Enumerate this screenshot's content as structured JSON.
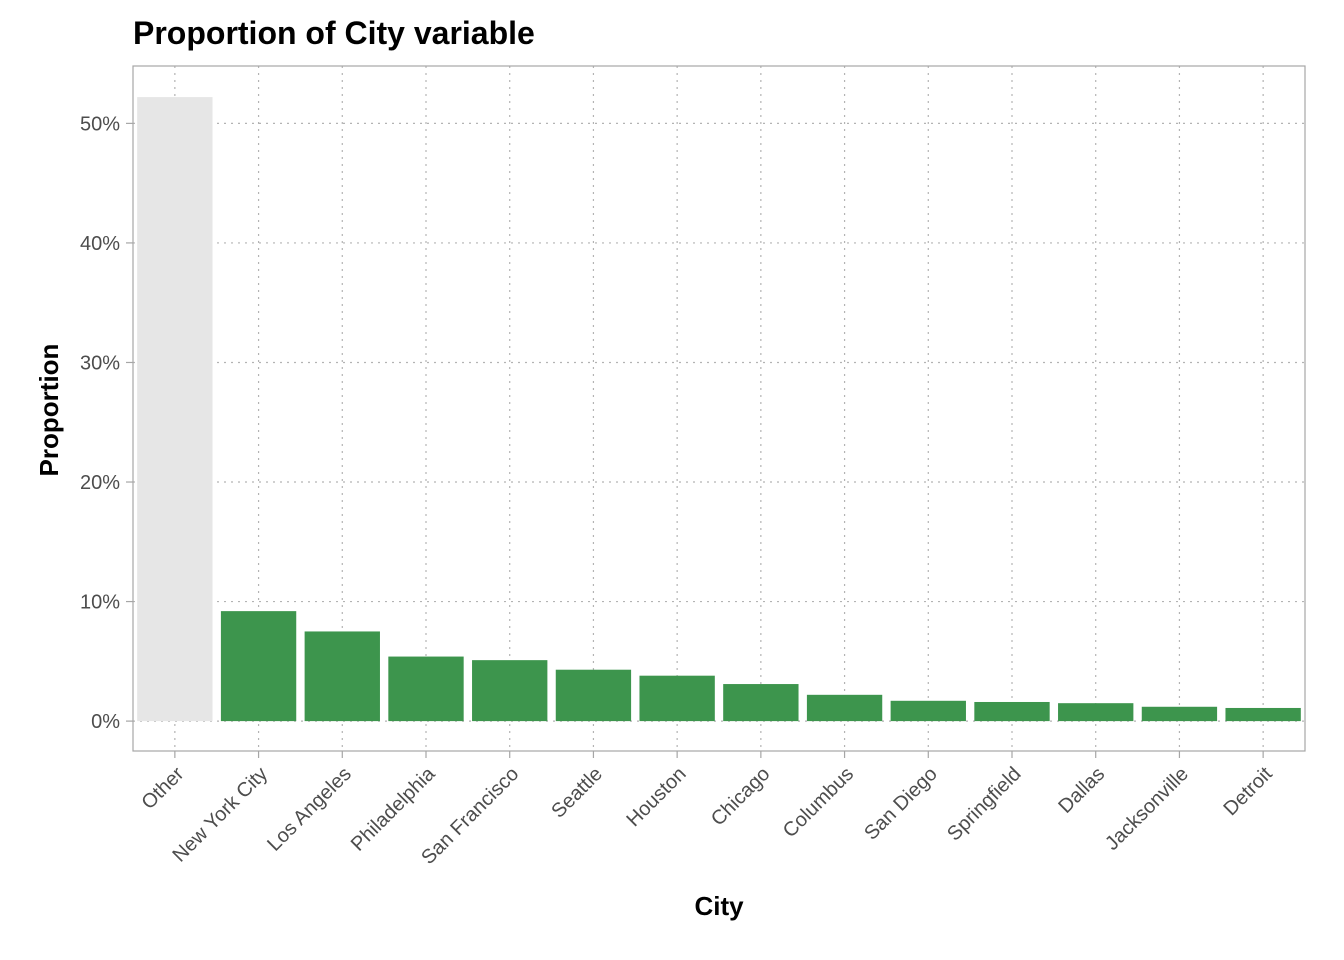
{
  "chart_data": {
    "type": "bar",
    "title": "Proportion of City variable",
    "xlabel": "City",
    "ylabel": "Proportion",
    "categories": [
      "Other",
      "New York City",
      "Los Angeles",
      "Philadelphia",
      "San Francisco",
      "Seattle",
      "Houston",
      "Chicago",
      "Columbus",
      "San Diego",
      "Springfield",
      "Dallas",
      "Jacksonville",
      "Detroit"
    ],
    "values": [
      52.2,
      9.2,
      7.5,
      5.4,
      5.1,
      4.3,
      3.8,
      3.1,
      2.2,
      1.7,
      1.6,
      1.5,
      1.2,
      1.1
    ],
    "ylim": [
      -2.5,
      54.8
    ],
    "yticks": [
      0,
      10,
      20,
      30,
      40,
      50
    ],
    "ytick_labels": [
      "0%",
      "10%",
      "20%",
      "30%",
      "40%",
      "50%"
    ],
    "grid": true,
    "colors": {
      "other": "#e6e6e6",
      "bar": "#3d954d"
    }
  }
}
